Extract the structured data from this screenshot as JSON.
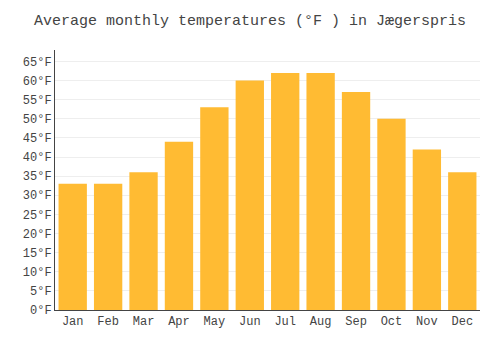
{
  "chart_data": {
    "type": "bar",
    "title": "Average monthly temperatures (°F ) in Jægerspris",
    "categories": [
      "Jan",
      "Feb",
      "Mar",
      "Apr",
      "May",
      "Jun",
      "Jul",
      "Aug",
      "Sep",
      "Oct",
      "Nov",
      "Dec"
    ],
    "values": [
      33,
      33,
      36,
      44,
      53,
      60,
      62,
      62,
      57,
      50,
      42,
      36
    ],
    "color": "#FFBB33",
    "ylim": [
      0,
      68
    ],
    "yticks": [
      {
        "value": 0,
        "label": "0°F"
      },
      {
        "value": 5,
        "label": "5°F"
      },
      {
        "value": 10,
        "label": "10°F"
      },
      {
        "value": 15,
        "label": "15°F"
      },
      {
        "value": 20,
        "label": "20°F"
      },
      {
        "value": 25,
        "label": "25°F"
      },
      {
        "value": 30,
        "label": "30°F"
      },
      {
        "value": 35,
        "label": "35°F"
      },
      {
        "value": 40,
        "label": "40°F"
      },
      {
        "value": 45,
        "label": "45°F"
      },
      {
        "value": 50,
        "label": "50°F"
      },
      {
        "value": 55,
        "label": "55°F"
      },
      {
        "value": 60,
        "label": "60°F"
      },
      {
        "value": 65,
        "label": "65°F"
      }
    ],
    "grid": true
  }
}
